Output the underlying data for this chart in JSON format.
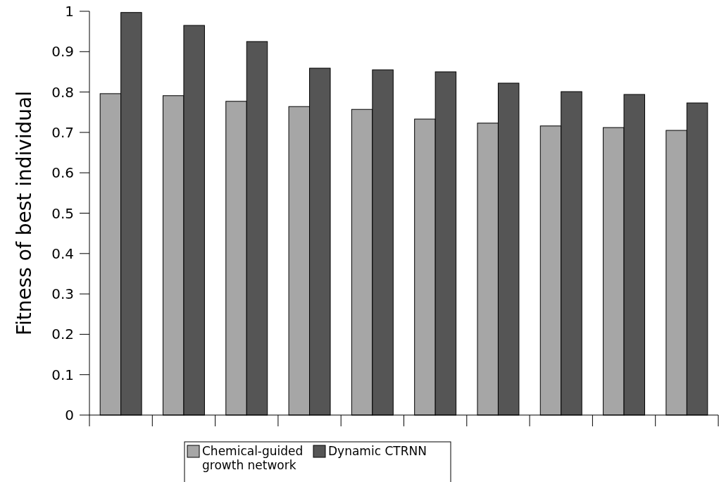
{
  "chart_data": {
    "type": "bar",
    "ylabel": "Fitness of best individual",
    "categories": [
      null,
      null,
      null,
      null,
      null,
      null,
      null,
      null,
      null,
      null
    ],
    "series": [
      {
        "name": "Chemical-guided growth network",
        "color": "#a6a6a6",
        "values": [
          0.796,
          0.791,
          0.777,
          0.764,
          0.757,
          0.733,
          0.723,
          0.716,
          0.712,
          0.705
        ]
      },
      {
        "name": "Dynamic CTRNN",
        "color": "#555555",
        "values": [
          0.997,
          0.965,
          0.925,
          0.859,
          0.855,
          0.85,
          0.822,
          0.801,
          0.794,
          0.773
        ]
      }
    ],
    "ylim": [
      0,
      1
    ],
    "yticks": [
      0,
      0.1,
      0.2,
      0.3,
      0.4,
      0.5,
      0.6,
      0.7,
      0.8,
      0.9,
      1
    ],
    "grid": false,
    "legend": "bottom"
  }
}
